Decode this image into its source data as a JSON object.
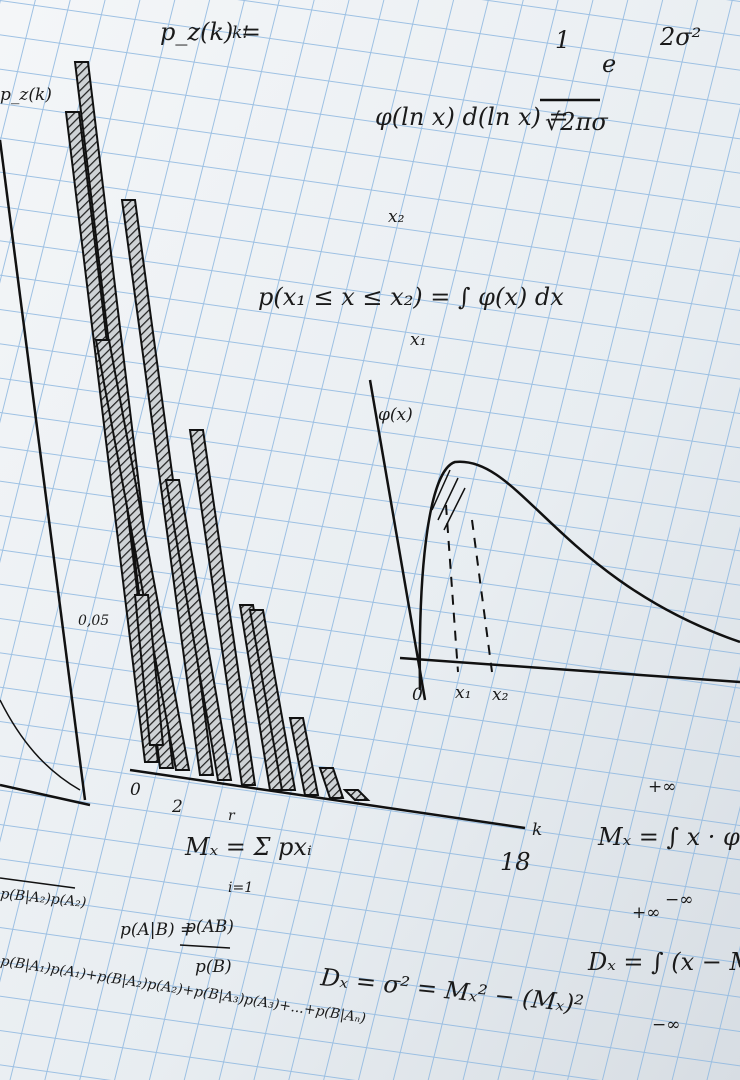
{
  "formulas": {
    "poisson_left": "p_z(k) =",
    "poisson_den": "k!",
    "poisson_axis": "p_z(k)",
    "lognormal_lhs": "φ(ln x) d(ln x) =",
    "lognormal_num": "1",
    "lognormal_den": "√2πσ",
    "lognormal_e": "e",
    "lognormal_exp": "2σ²",
    "prob_upper": "x₂",
    "prob_main": "p(x₁ ≤ x ≤ x₂) = ∫ φ(x) dx",
    "prob_lower": "x₁",
    "curve_axis": "φ(x)",
    "curve_zero": "0",
    "curve_x1": "x₁",
    "curve_x2": "x₂",
    "hist_tick": "0,05",
    "hist_zero": "0",
    "hist_two": "2",
    "hist_eighteen": "18",
    "hist_k": "k",
    "sum_upper": "r",
    "sum_main": "Mₓ = Σ pxᵢ",
    "sum_lower": "i=1",
    "mean_upper": "+∞",
    "mean_main": "Mₓ = ∫ x · φ",
    "mean_lower": "−∞",
    "var_upper": "+∞",
    "var_main": "Dₓ = ∫ (x − M",
    "var_lower": "−∞",
    "bayes_lhs": "p(A|B) =",
    "bayes_num": "p(AB)",
    "bayes_den": "p(B)",
    "variance": "Dₓ = σ² = Mₓ² − (Mₓ)²",
    "total_top": "p(B|A₂)p(A₂)",
    "total_sum": "p(B|A₁)p(A₁)+p(B|A₂)p(A₂)+p(B|A₃)p(A₃)+...+p(B|Aₙ)"
  }
}
